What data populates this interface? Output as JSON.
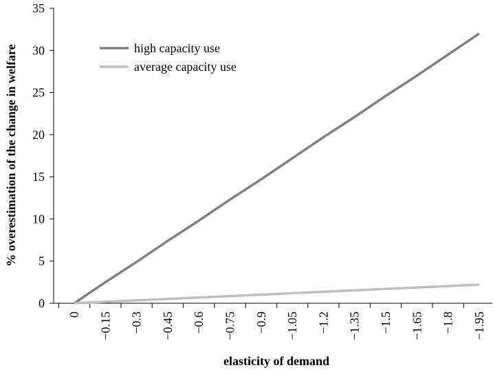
{
  "chart_data": {
    "type": "line",
    "title": "",
    "xlabel": "elasticity of demand",
    "ylabel": "% overestimation of the change in welfare",
    "ylim": [
      0,
      35
    ],
    "y_ticks": [
      "0",
      "5",
      "10",
      "15",
      "20",
      "25",
      "30",
      "35"
    ],
    "categories": [
      "0",
      "−0.15",
      "−0.3",
      "−0.45",
      "−0.6",
      "−0.75",
      "−0.9",
      "−1.05",
      "−1.2",
      "−1.35",
      "−1.5",
      "−1.65",
      "−1.8",
      "−1.95"
    ],
    "x": [
      0,
      -0.15,
      -0.3,
      -0.45,
      -0.6,
      -0.75,
      -0.9,
      -1.05,
      -1.2,
      -1.35,
      -1.5,
      -1.65,
      -1.8,
      -1.95
    ],
    "grid": false,
    "legend_position": "top-left",
    "series": [
      {
        "name": "high capacity use",
        "color": "#808080",
        "values": [
          0,
          2.5,
          4.9,
          7.4,
          9.8,
          12.3,
          14.7,
          17.2,
          19.7,
          22.1,
          24.6,
          27.0,
          29.5,
          32.0
        ]
      },
      {
        "name": "average capacity use",
        "color": "#bebebe",
        "values": [
          0,
          0.17,
          0.34,
          0.51,
          0.68,
          0.85,
          1.02,
          1.19,
          1.36,
          1.53,
          1.7,
          1.87,
          2.04,
          2.2
        ]
      }
    ]
  }
}
